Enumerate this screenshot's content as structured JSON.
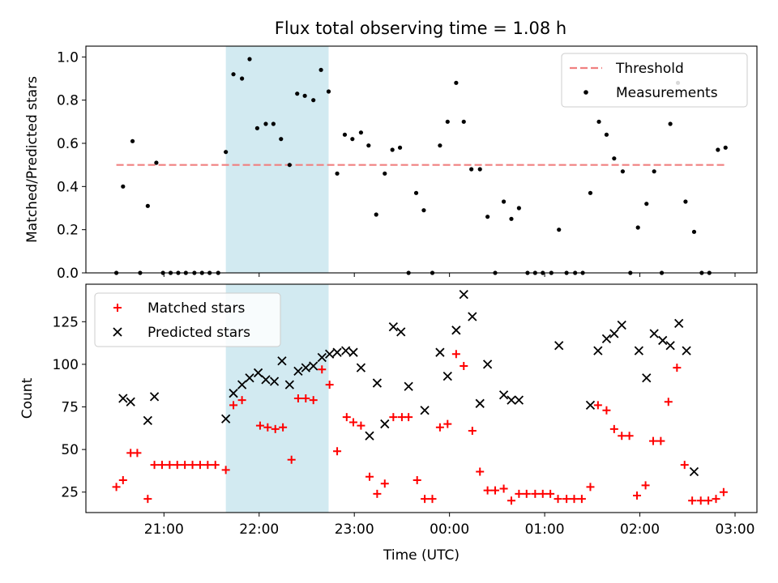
{
  "title": "Flux total observing time = 1.08 h",
  "chart_data": [
    {
      "type": "scatter",
      "ylabel": "Matched/Predicted stars",
      "xlabel": "",
      "x_unit": "hours since 21:00 UTC",
      "xlim": [
        -0.82,
        6.23
      ],
      "ylim": [
        0,
        1.05
      ],
      "grid": false,
      "legend_position": "top-right",
      "highlight_span": {
        "x0": 0.65,
        "x1": 1.73,
        "color": "#add8e6"
      },
      "yticks": [
        {
          "v": 0.0,
          "label": "0.0"
        },
        {
          "v": 0.2,
          "label": "0.2"
        },
        {
          "v": 0.4,
          "label": "0.4"
        },
        {
          "v": 0.6,
          "label": "0.6"
        },
        {
          "v": 0.8,
          "label": "0.8"
        },
        {
          "v": 1.0,
          "label": "1.0"
        }
      ],
      "series": [
        {
          "name": "Threshold",
          "kind": "dashed-line",
          "color": "#f08080",
          "x": [
            -0.5,
            5.9
          ],
          "y": [
            0.5,
            0.5
          ]
        },
        {
          "name": "Measurements",
          "kind": "points",
          "color": "#000000",
          "x": [
            -0.5,
            -0.43,
            -0.33,
            -0.25,
            -0.17,
            -0.08,
            -0.01,
            0.07,
            0.15,
            0.23,
            0.32,
            0.4,
            0.48,
            0.57,
            0.65,
            0.73,
            0.82,
            0.9,
            0.98,
            1.07,
            1.15,
            1.23,
            1.32,
            1.4,
            1.48,
            1.57,
            1.65,
            1.73,
            1.82,
            1.9,
            1.98,
            2.07,
            2.15,
            2.23,
            2.32,
            2.4,
            2.48,
            2.57,
            2.65,
            2.73,
            2.82,
            2.9,
            2.98,
            3.07,
            3.15,
            3.23,
            3.32,
            3.4,
            3.48,
            3.57,
            3.65,
            3.73,
            3.82,
            3.9,
            3.98,
            4.07,
            4.15,
            4.23,
            4.32,
            4.4,
            4.48,
            4.57,
            4.65,
            4.73,
            4.82,
            4.9,
            4.98,
            5.07,
            5.15,
            5.23,
            5.32,
            5.4,
            5.48,
            5.57,
            5.65,
            5.73,
            5.82,
            5.9
          ],
          "y": [
            0.0,
            0.4,
            0.61,
            0.0,
            0.31,
            0.51,
            0.0,
            0.0,
            0.0,
            0.0,
            0.0,
            0.0,
            0.0,
            0.0,
            0.56,
            0.92,
            0.9,
            0.99,
            0.67,
            0.69,
            0.69,
            0.62,
            0.5,
            0.83,
            0.82,
            0.8,
            0.94,
            0.84,
            0.46,
            0.64,
            0.62,
            0.65,
            0.59,
            0.27,
            0.46,
            0.57,
            0.58,
            0.0,
            0.37,
            0.29,
            0.0,
            0.59,
            0.7,
            0.88,
            0.7,
            0.48,
            0.48,
            0.26,
            0.0,
            0.33,
            0.25,
            0.3,
            0.0,
            0.0,
            0.0,
            0.0,
            0.2,
            0.0,
            0.0,
            0.0,
            0.37,
            0.7,
            0.64,
            0.53,
            0.47,
            0.0,
            0.21,
            0.32,
            0.47,
            0.0,
            0.69,
            0.88,
            0.33,
            0.19,
            0.0,
            0.0,
            0.57,
            0.58
          ]
        }
      ]
    },
    {
      "type": "scatter",
      "ylabel": "Count",
      "xlabel": "Time (UTC)",
      "x_unit": "hours since 21:00 UTC",
      "xlim": [
        -0.82,
        6.23
      ],
      "ylim": [
        13,
        147
      ],
      "grid": false,
      "legend_position": "top-left",
      "highlight_span": {
        "x0": 0.65,
        "x1": 1.73,
        "color": "#add8e6"
      },
      "yticks": [
        {
          "v": 25,
          "label": "25"
        },
        {
          "v": 50,
          "label": "50"
        },
        {
          "v": 75,
          "label": "75"
        },
        {
          "v": 100,
          "label": "100"
        },
        {
          "v": 125,
          "label": "125"
        }
      ],
      "xticks": [
        {
          "v": 0,
          "label": "21:00"
        },
        {
          "v": 1,
          "label": "22:00"
        },
        {
          "v": 2,
          "label": "23:00"
        },
        {
          "v": 3,
          "label": "00:00"
        },
        {
          "v": 4,
          "label": "01:00"
        },
        {
          "v": 5,
          "label": "02:00"
        },
        {
          "v": 6,
          "label": "03:00"
        }
      ],
      "series": [
        {
          "name": "Matched stars",
          "marker": "+",
          "color": "#ff0000",
          "x": [
            -0.5,
            -0.43,
            -0.35,
            -0.28,
            -0.17,
            -0.1,
            -0.02,
            0.06,
            0.14,
            0.22,
            0.3,
            0.38,
            0.46,
            0.54,
            0.65,
            0.73,
            0.82,
            1.01,
            1.09,
            1.17,
            1.25,
            1.34,
            1.41,
            1.49,
            1.57,
            1.66,
            1.74,
            1.82,
            1.92,
            1.99,
            2.07,
            2.16,
            2.24,
            2.32,
            2.41,
            2.5,
            2.57,
            2.66,
            2.74,
            2.82,
            2.9,
            2.98,
            3.07,
            3.15,
            3.24,
            3.32,
            3.4,
            3.48,
            3.57,
            3.65,
            3.73,
            3.81,
            3.9,
            3.98,
            4.06,
            4.14,
            4.23,
            4.31,
            4.39,
            4.48,
            4.56,
            4.65,
            4.73,
            4.81,
            4.89,
            4.97,
            5.06,
            5.14,
            5.22,
            5.3,
            5.39,
            5.47,
            5.55,
            5.64,
            5.72,
            5.8,
            5.88
          ],
          "y": [
            28,
            32,
            48,
            48,
            21,
            41,
            41,
            41,
            41,
            41,
            41,
            41,
            41,
            41,
            38,
            76,
            79,
            64,
            63,
            62,
            63,
            44,
            80,
            80,
            79,
            97,
            88,
            49,
            69,
            66,
            64,
            34,
            24,
            30,
            69,
            69,
            69,
            32,
            21,
            21,
            63,
            65,
            106,
            99,
            61,
            37,
            26,
            26,
            27,
            20,
            24,
            24,
            24,
            24,
            24,
            21,
            21,
            21,
            21,
            28,
            76,
            73,
            62,
            58,
            58,
            23,
            29,
            55,
            55,
            78,
            98,
            41,
            20,
            20,
            20,
            21,
            25
          ]
        },
        {
          "name": "Predicted stars",
          "marker": "x",
          "color": "#000000",
          "x": [
            -0.43,
            -0.35,
            -0.17,
            -0.1,
            0.65,
            0.73,
            0.82,
            0.9,
            0.99,
            1.07,
            1.16,
            1.24,
            1.32,
            1.41,
            1.49,
            1.57,
            1.66,
            1.74,
            1.82,
            1.91,
            1.99,
            2.07,
            2.16,
            2.24,
            2.32,
            2.41,
            2.49,
            2.57,
            2.74,
            2.9,
            2.98,
            3.07,
            3.15,
            3.24,
            3.32,
            3.4,
            3.57,
            3.65,
            3.73,
            4.15,
            4.48,
            4.56,
            4.65,
            4.73,
            4.81,
            4.99,
            5.07,
            5.15,
            5.24,
            5.32,
            5.41,
            5.49,
            5.57
          ],
          "y": [
            80,
            78,
            67,
            81,
            68,
            83,
            88,
            92,
            95,
            91,
            90,
            102,
            88,
            96,
            98,
            99,
            104,
            106,
            107,
            108,
            107,
            98,
            58,
            89,
            65,
            122,
            119,
            87,
            73,
            107,
            93,
            120,
            141,
            128,
            77,
            100,
            82,
            79,
            79,
            111,
            76,
            108,
            115,
            118,
            123,
            108,
            92,
            118,
            114,
            111,
            124,
            108,
            37
          ]
        }
      ]
    }
  ]
}
